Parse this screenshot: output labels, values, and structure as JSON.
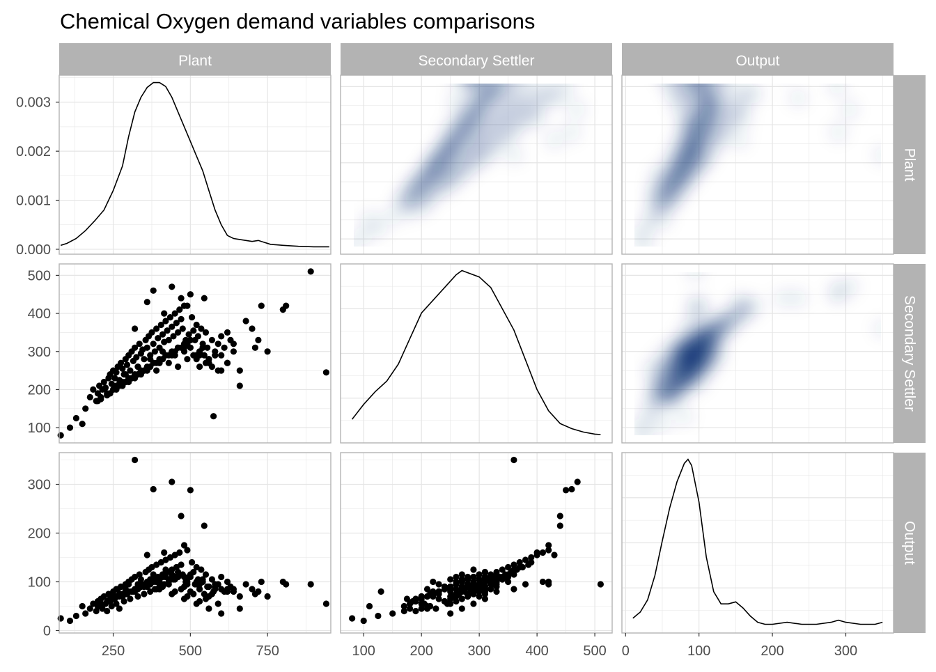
{
  "chart_data": {
    "type": "scatter",
    "title": "Chemical Oxygen demand variables comparisons",
    "variables": [
      "Plant",
      "Secondary Settler",
      "Output"
    ],
    "colors": {
      "strip": "#b3b3b3",
      "panel_border": "#b3b3b3",
      "grid": "#e5e5e5",
      "points": "#000000",
      "density_line": "#000000",
      "heat_low": "#ffffff",
      "heat_high": "#08306b"
    },
    "axes": {
      "Plant": {
        "xlim": [
          75,
          955
        ],
        "ticks": [
          250,
          500,
          750
        ],
        "ylim": [
          60,
          530
        ],
        "yticks": [
          100,
          200,
          300,
          400,
          500
        ]
      },
      "Secondary Settler": {
        "xlim": [
          60,
          530
        ],
        "ticks": [
          100,
          200,
          300,
          400,
          500
        ],
        "ylim": [
          60,
          530
        ],
        "yticks": [
          100,
          200,
          300,
          400,
          500
        ]
      },
      "Output": {
        "xlim": [
          -5,
          365
        ],
        "ticks": [
          0,
          100,
          200,
          300
        ],
        "ylim": [
          -5,
          365
        ],
        "yticks": [
          0,
          100,
          200,
          300
        ]
      }
    },
    "density_axis": {
      "ylim": [
        -0.0001,
        0.00355
      ],
      "ticks": [
        "0.000",
        "0.001",
        "0.002",
        "0.003"
      ],
      "tick_values": [
        0,
        0.001,
        0.002,
        0.003
      ]
    },
    "density_curves": {
      "Plant": {
        "x": [
          80,
          100,
          130,
          160,
          190,
          220,
          250,
          280,
          300,
          320,
          340,
          360,
          380,
          400,
          420,
          440,
          460,
          480,
          500,
          520,
          540,
          560,
          580,
          600,
          620,
          640,
          660,
          680,
          700,
          720,
          740,
          760,
          780,
          800,
          850,
          900,
          950
        ],
        "y": [
          8e-05,
          0.00012,
          0.00022,
          0.00038,
          0.00058,
          0.0008,
          0.0012,
          0.0017,
          0.0023,
          0.0028,
          0.0031,
          0.0033,
          0.0034,
          0.0034,
          0.00332,
          0.0031,
          0.0028,
          0.0025,
          0.0022,
          0.0019,
          0.0016,
          0.0012,
          0.0008,
          0.0005,
          0.00028,
          0.00022,
          0.0002,
          0.00018,
          0.00016,
          0.00018,
          0.00014,
          0.0001,
          9e-05,
          8e-05,
          6e-05,
          5e-05,
          5e-05
        ]
      },
      "Secondary Settler": {
        "x": [
          80,
          100,
          120,
          140,
          160,
          180,
          200,
          220,
          240,
          260,
          270,
          280,
          300,
          320,
          340,
          360,
          380,
          400,
          420,
          440,
          460,
          480,
          500,
          510
        ],
        "y": [
          0.0004,
          0.00075,
          0.00105,
          0.0013,
          0.0017,
          0.0023,
          0.0029,
          0.0032,
          0.0035,
          0.0038,
          0.0039,
          0.00385,
          0.00375,
          0.0035,
          0.003,
          0.0025,
          0.0018,
          0.0011,
          0.0006,
          0.0003,
          0.00018,
          0.0001,
          5e-05,
          4e-05
        ]
      },
      "Output": {
        "x": [
          10,
          20,
          30,
          40,
          50,
          60,
          70,
          80,
          85,
          90,
          100,
          110,
          120,
          130,
          140,
          150,
          160,
          170,
          180,
          190,
          200,
          220,
          240,
          260,
          280,
          290,
          300,
          320,
          340,
          350
        ],
        "y": [
          0.0004,
          0.0007,
          0.0013,
          0.0025,
          0.0042,
          0.0058,
          0.0071,
          0.008,
          0.0082,
          0.0079,
          0.0061,
          0.0034,
          0.0017,
          0.0011,
          0.0011,
          0.0012,
          0.0009,
          0.0005,
          0.0002,
          0.0001,
          0.0001,
          0.0002,
          0.0001,
          0.0001,
          0.0002,
          0.0003,
          0.0002,
          0.0001,
          0.0001,
          0.0002
        ]
      }
    },
    "observations": {
      "plant": [
        80,
        110,
        130,
        150,
        160,
        175,
        185,
        195,
        200,
        205,
        210,
        215,
        220,
        225,
        230,
        235,
        240,
        245,
        250,
        255,
        260,
        265,
        270,
        275,
        280,
        285,
        290,
        295,
        300,
        305,
        310,
        315,
        320,
        325,
        330,
        335,
        340,
        345,
        350,
        355,
        360,
        365,
        370,
        375,
        380,
        385,
        390,
        395,
        400,
        405,
        410,
        415,
        420,
        425,
        430,
        435,
        440,
        445,
        450,
        455,
        460,
        465,
        470,
        475,
        480,
        485,
        490,
        495,
        500,
        505,
        510,
        515,
        520,
        525,
        530,
        535,
        540,
        545,
        550,
        555,
        560,
        570,
        580,
        590,
        600,
        610,
        620,
        630,
        640,
        660,
        680,
        700,
        710,
        720,
        730,
        750,
        800,
        810,
        890,
        940,
        320,
        380,
        440,
        500,
        360,
        470,
        545,
        480,
        415,
        575,
        340,
        300,
        460,
        520,
        390,
        430,
        260,
        310,
        350,
        400,
        450,
        270,
        290,
        330,
        370,
        410,
        490,
        530,
        560,
        600,
        640,
        240,
        280,
        320,
        360,
        400,
        440,
        480,
        520,
        560,
        300,
        340,
        380,
        420,
        460,
        500,
        540,
        580,
        620,
        250,
        290,
        330,
        370,
        410,
        450,
        490,
        530,
        570,
        230,
        270,
        310,
        350,
        390,
        430,
        470,
        510,
        550,
        590,
        210,
        250,
        290,
        330,
        370,
        410,
        450,
        490,
        530,
        200,
        240,
        280,
        320,
        360,
        400,
        440,
        480,
        520,
        560,
        600,
        260,
        300,
        340,
        380,
        420,
        460,
        500,
        540,
        580,
        620,
        660
      ],
      "settler": [
        80,
        100,
        125,
        110,
        150,
        180,
        200,
        170,
        190,
        210,
        175,
        200,
        220,
        205,
        190,
        230,
        240,
        215,
        250,
        230,
        245,
        260,
        225,
        270,
        255,
        240,
        280,
        265,
        290,
        250,
        300,
        275,
        310,
        285,
        260,
        320,
        295,
        305,
        280,
        330,
        310,
        340,
        290,
        350,
        320,
        300,
        360,
        335,
        310,
        370,
        345,
        325,
        380,
        355,
        330,
        390,
        365,
        340,
        400,
        375,
        350,
        410,
        385,
        360,
        300,
        330,
        420,
        345,
        310,
        390,
        355,
        330,
        370,
        340,
        300,
        360,
        320,
        290,
        350,
        310,
        280,
        330,
        300,
        320,
        340,
        310,
        350,
        330,
        320,
        210,
        380,
        360,
        310,
        330,
        420,
        300,
        410,
        420,
        510,
        245,
        360,
        460,
        470,
        450,
        430,
        440,
        440,
        420,
        400,
        130,
        240,
        220,
        260,
        280,
        250,
        270,
        200,
        230,
        250,
        270,
        290,
        215,
        240,
        260,
        280,
        300,
        320,
        300,
        280,
        290,
        300,
        190,
        220,
        240,
        260,
        280,
        300,
        320,
        290,
        270,
        230,
        250,
        270,
        290,
        310,
        330,
        310,
        290,
        270,
        200,
        220,
        240,
        260,
        280,
        300,
        320,
        290,
        260,
        185,
        210,
        230,
        250,
        270,
        290,
        310,
        290,
        270,
        250,
        180,
        200,
        220,
        240,
        260,
        280,
        300,
        280,
        260,
        170,
        190,
        210,
        230,
        250,
        270,
        290,
        310,
        290,
        270,
        250,
        210,
        230,
        250,
        270,
        290,
        310,
        330,
        310,
        290,
        270,
        250
      ],
      "output": [
        25,
        20,
        30,
        50,
        35,
        45,
        55,
        40,
        60,
        50,
        65,
        45,
        70,
        55,
        40,
        75,
        60,
        50,
        80,
        65,
        55,
        85,
        45,
        90,
        70,
        60,
        95,
        75,
        100,
        65,
        105,
        80,
        110,
        85,
        70,
        115,
        90,
        95,
        75,
        120,
        100,
        125,
        80,
        130,
        105,
        85,
        135,
        110,
        90,
        140,
        115,
        95,
        145,
        120,
        100,
        150,
        125,
        105,
        155,
        130,
        110,
        160,
        135,
        115,
        90,
        100,
        165,
        110,
        80,
        140,
        120,
        95,
        130,
        105,
        85,
        125,
        100,
        75,
        115,
        90,
        70,
        105,
        85,
        95,
        110,
        80,
        100,
        90,
        85,
        45,
        95,
        85,
        75,
        80,
        100,
        70,
        100,
        95,
        95,
        55,
        350,
        290,
        305,
        288,
        155,
        235,
        215,
        175,
        160,
        80,
        90,
        100,
        110,
        95,
        85,
        105,
        70,
        80,
        90,
        100,
        110,
        75,
        85,
        95,
        105,
        115,
        100,
        95,
        90,
        85,
        80,
        65,
        75,
        85,
        95,
        105,
        115,
        110,
        100,
        90,
        80,
        90,
        100,
        110,
        120,
        115,
        105,
        95,
        85,
        70,
        80,
        90,
        100,
        110,
        105,
        95,
        85,
        75,
        60,
        70,
        80,
        90,
        100,
        95,
        85,
        75,
        65,
        55,
        55,
        65,
        75,
        85,
        95,
        90,
        80,
        70,
        60,
        50,
        60,
        70,
        80,
        90,
        85,
        75,
        65,
        55,
        45,
        35,
        85,
        95,
        105,
        115,
        125,
        120,
        110,
        100,
        90,
        80,
        70
      ]
    }
  }
}
